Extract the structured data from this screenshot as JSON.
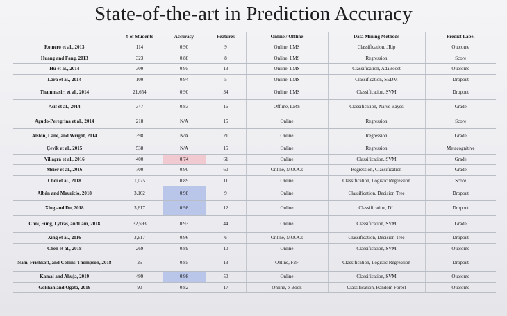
{
  "title": "State-of-the-art in Prediction Accuracy",
  "table": {
    "headers": [
      "",
      "# of Students",
      "Accuracy",
      "Features",
      "Online / Offline",
      "Data Mining Methods",
      "Predict Label"
    ],
    "rows": [
      {
        "author": "Romero et al., 2013",
        "students": "114",
        "accuracy": "0.90",
        "features": "9",
        "mode": "Online, LMS",
        "method": "Classification, JRip",
        "label": "Outcome",
        "h": "r"
      },
      {
        "author": "Huang and Fang, 2013",
        "students": "323",
        "accuracy": "0.88",
        "features": "8",
        "mode": "Online, LMS",
        "method": "Regression",
        "label": "Score",
        "h": "r"
      },
      {
        "author": "Hu et al., 2014",
        "students": "300",
        "accuracy": "0.95",
        "features": "13",
        "mode": "Online, LMS",
        "method": "Classification, AdaBoost",
        "label": "Outcome",
        "h": "r"
      },
      {
        "author": "Lara et al., 2014",
        "students": "100",
        "accuracy": "0.94",
        "features": "5",
        "mode": "Online, LMS",
        "method": "Classification, SEDM",
        "label": "Dropout",
        "h": "r"
      },
      {
        "author": "Thammasiri et al., 2014",
        "students": "21,654",
        "accuracy": "0.90",
        "features": "34",
        "mode": "Online, LMS",
        "method": "Classification, SVM",
        "label": "Dropout",
        "h": "tall"
      },
      {
        "author": "Asif et al., 2014",
        "students": "347",
        "accuracy": "0.83",
        "features": "16",
        "mode": "Offline, LMS",
        "method": "Classification, Naive Bayes",
        "label": "Grade",
        "h": "tall"
      },
      {
        "author": "Agudo-Peregrina et al., 2014",
        "students": "218",
        "accuracy": "N/A",
        "features": "15",
        "mode": "Online",
        "method": "Regression",
        "label": "Score",
        "h": "tall"
      },
      {
        "author": "Alston, Lane, and Wright, 2014",
        "students": "398",
        "accuracy": "N/A",
        "features": "21",
        "mode": "Online",
        "method": "Regression",
        "label": "Grade",
        "h": "tall"
      },
      {
        "author": "Çevik et al., 2015",
        "students": "538",
        "accuracy": "N/A",
        "features": "15",
        "mode": "Online",
        "method": "Regression",
        "label": "Metacognitive",
        "h": "r"
      },
      {
        "author": "Villagrá et al., 2016",
        "students": "400",
        "accuracy": "0.74",
        "features": "61",
        "mode": "Online",
        "method": "Classification, SVM",
        "label": "Grade",
        "h": "r",
        "hl": "pink"
      },
      {
        "author": "Meier et al., 2016",
        "students": "700",
        "accuracy": "0.90",
        "features": "60",
        "mode": "Online, MOOCs",
        "method": "Regression, Classification",
        "label": "Grade",
        "h": "r"
      },
      {
        "author": "Choi et al., 2018",
        "students": "1,075",
        "accuracy": "0.89",
        "features": "11",
        "mode": "Online",
        "method": "Classification, Logistic Regression",
        "label": "Score",
        "h": "r"
      },
      {
        "author": "Albán and Mauricio, 2018",
        "students": "3,162",
        "accuracy": "0.98",
        "features": "9",
        "mode": "Online",
        "method": "Classification, Decision Tree",
        "label": "Dropout",
        "h": "tall",
        "hl": "blue"
      },
      {
        "author": "Xing and Du, 2018",
        "students": "3,617",
        "accuracy": "0.98",
        "features": "12",
        "mode": "Online",
        "method": "Classification, DL",
        "label": "Dropout",
        "h": "tall",
        "hl": "blue"
      },
      {
        "author": "Choi, Fung, Lytras, andLam, 2018",
        "students": "32,593",
        "accuracy": "0.93",
        "features": "44",
        "mode": "Online",
        "method": "Classification, SVM",
        "label": "Grade",
        "h": "xtall"
      },
      {
        "author": "Xing et al., 2016",
        "students": "3,617",
        "accuracy": "0.96",
        "features": "6",
        "mode": "Online, MOOCs",
        "method": "Classification, Decision Tree",
        "label": "Dropout",
        "h": "r"
      },
      {
        "author": "Chen et al., 2018",
        "students": "269",
        "accuracy": "0.89",
        "features": "10",
        "mode": "Online",
        "method": "Classification, SVM",
        "label": "Outcome",
        "h": "r"
      },
      {
        "author": "Nam, Frishkoff, and Collins-Thompson, 2018",
        "students": "25",
        "accuracy": "0.85",
        "features": "13",
        "mode": "Online, F2F",
        "method": "Classification, Logistic Regression",
        "label": "Dropout",
        "h": "xtall"
      },
      {
        "author": "Kamal and Ahuja, 2019",
        "students": "499",
        "accuracy": "0.98",
        "features": "50",
        "mode": "Online",
        "method": "Classification, SVM",
        "label": "Outcome",
        "h": "r",
        "hl": "blue"
      },
      {
        "author": "Gökhan and Ogata, 2019",
        "students": "90",
        "accuracy": "0.82",
        "features": "17",
        "mode": "Online, e-Book",
        "method": "Classification, Random Forest",
        "label": "Outcome",
        "h": "r"
      }
    ]
  }
}
